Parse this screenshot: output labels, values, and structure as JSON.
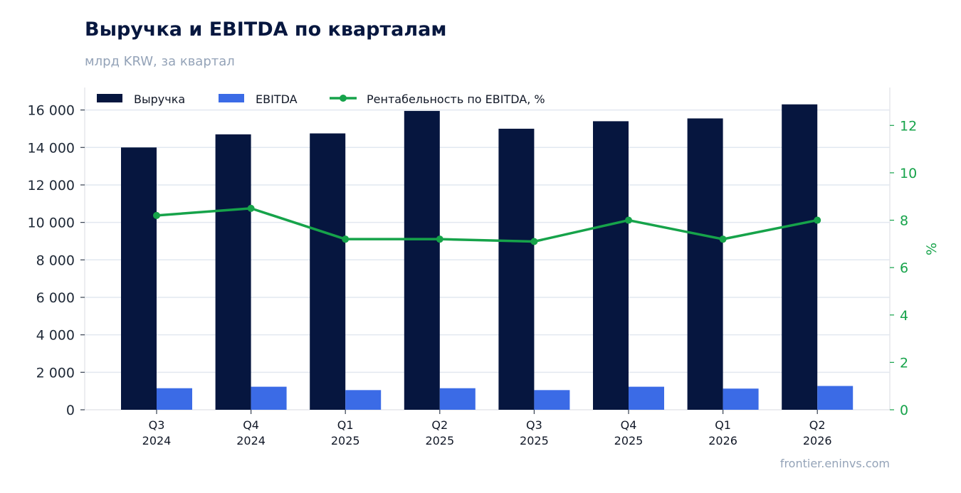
{
  "header": {
    "title": "Выручка и EBITDA по кварталам",
    "subtitle": "млрд KRW, за квартал"
  },
  "footer": {
    "source": "frontier.eninvs.com"
  },
  "chart_data": {
    "type": "bar",
    "categories": [
      [
        "Q3",
        "2024"
      ],
      [
        "Q4",
        "2024"
      ],
      [
        "Q1",
        "2025"
      ],
      [
        "Q2",
        "2025"
      ],
      [
        "Q3",
        "2025"
      ],
      [
        "Q4",
        "2025"
      ],
      [
        "Q1",
        "2026"
      ],
      [
        "Q2",
        "2026"
      ]
    ],
    "series": [
      {
        "name": "Выручка",
        "type": "bar",
        "axis": "left",
        "color": "#06163f",
        "values": [
          14000,
          14700,
          14750,
          15950,
          15000,
          15400,
          15550,
          16300
        ]
      },
      {
        "name": "EBITDA",
        "type": "bar",
        "axis": "left",
        "color": "#3b6be6",
        "values": [
          1150,
          1230,
          1050,
          1150,
          1050,
          1230,
          1130,
          1270
        ]
      },
      {
        "name": "Рентабельность по EBITDA, %",
        "type": "line",
        "axis": "right",
        "color": "#16a34a",
        "values": [
          8.2,
          8.5,
          7.2,
          7.2,
          7.1,
          8.0,
          7.2,
          8.0
        ]
      }
    ],
    "y_left": {
      "ylim": [
        0,
        17200
      ],
      "ticks": [
        "0",
        "2 000",
        "4 000",
        "6 000",
        "8 000",
        "10 000",
        "12 000",
        "14 000",
        "16 000"
      ],
      "tick_values": [
        0,
        2000,
        4000,
        6000,
        8000,
        10000,
        12000,
        14000,
        16000
      ]
    },
    "y_right": {
      "label": "%",
      "ylim": [
        0,
        13.6
      ],
      "ticks": [
        "0",
        "2",
        "4",
        "6",
        "8",
        "10",
        "12"
      ],
      "tick_values": [
        0,
        2,
        4,
        6,
        8,
        10,
        12
      ],
      "color": "#16a34a"
    },
    "grid": true,
    "legend": "top-left"
  }
}
